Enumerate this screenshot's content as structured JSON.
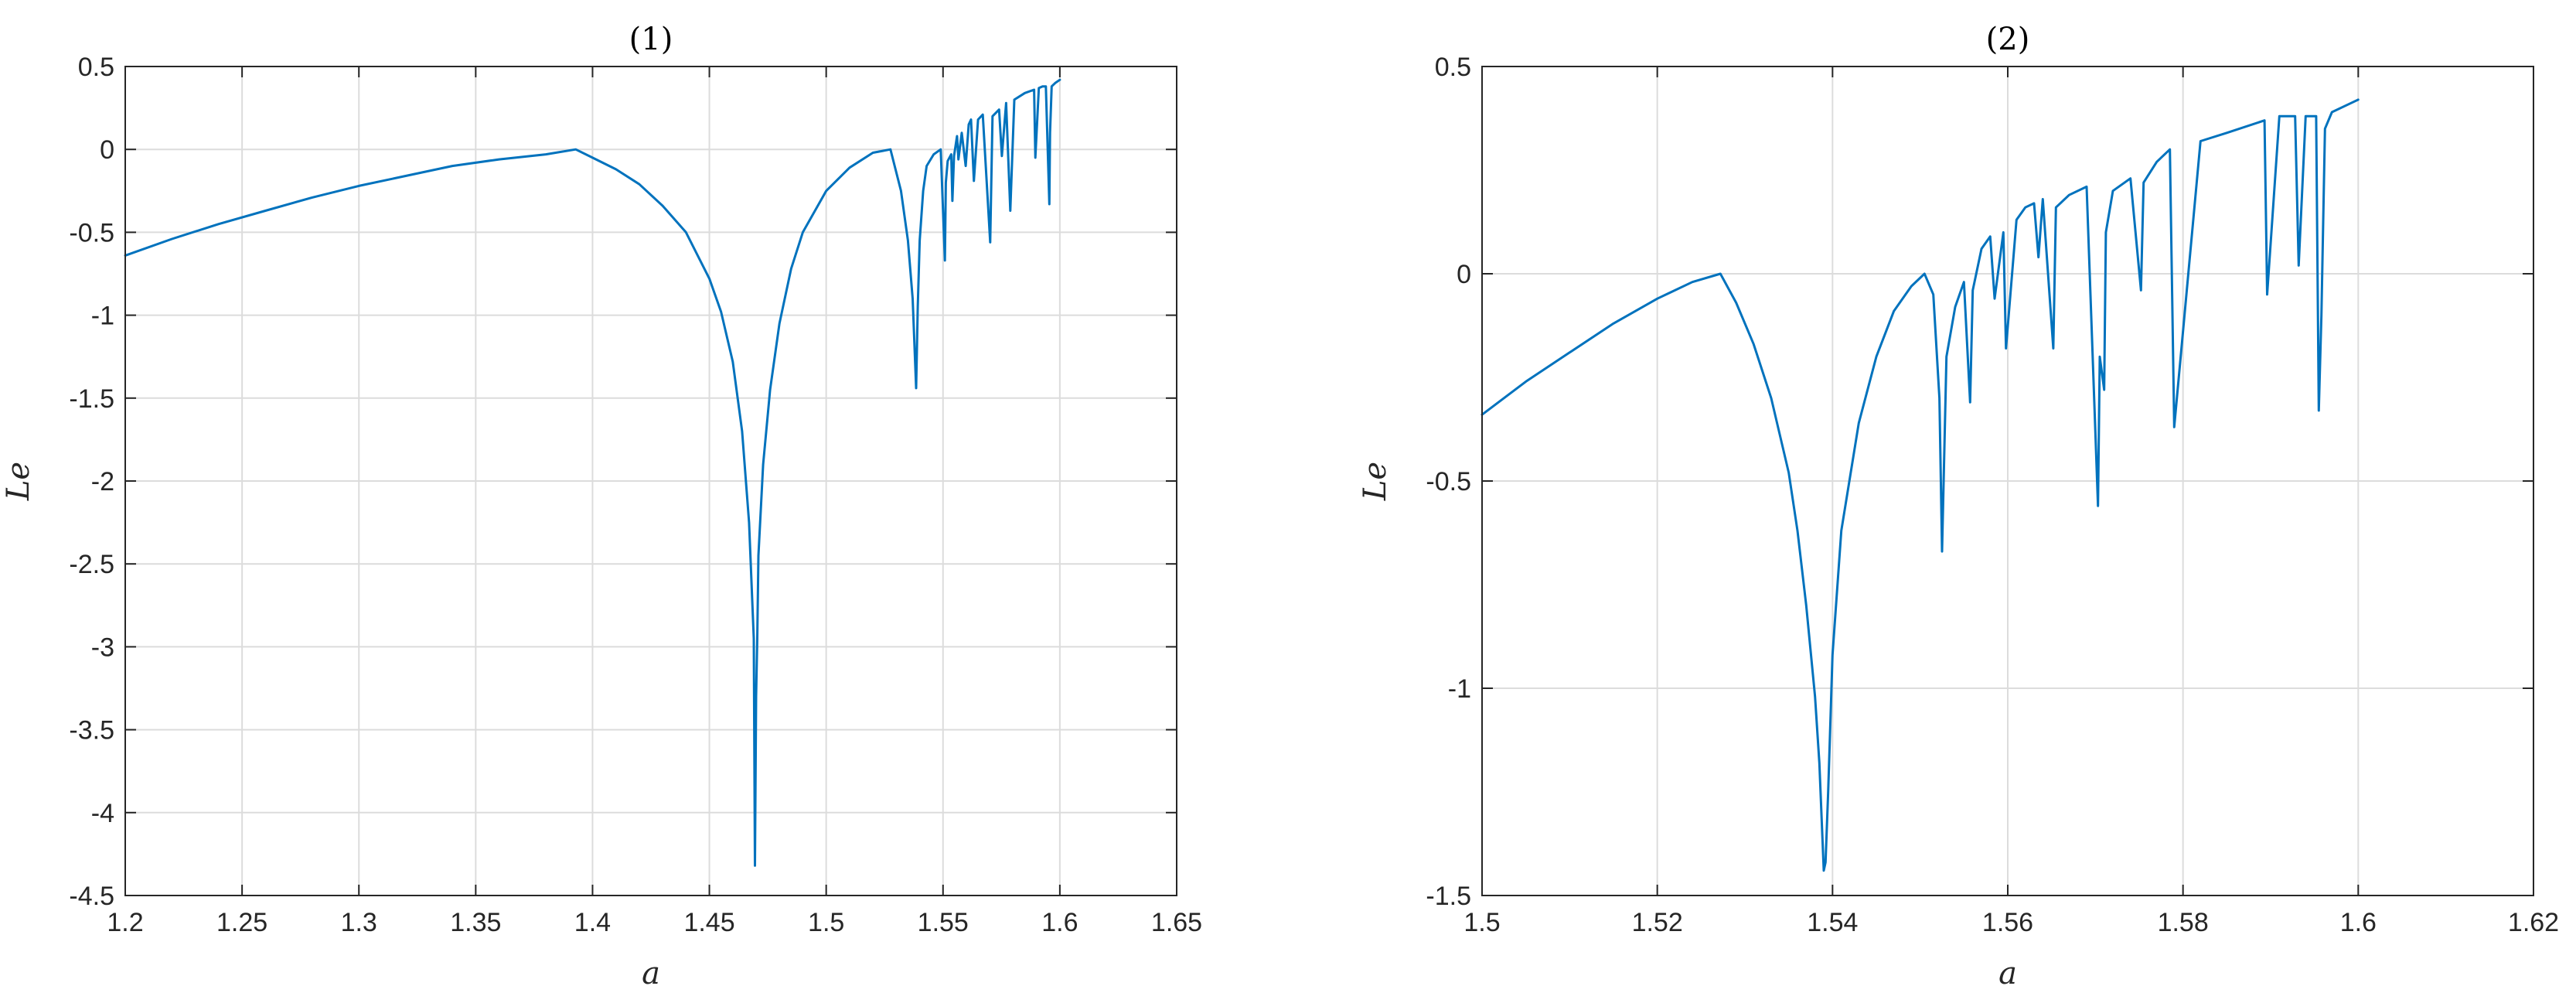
{
  "chart_data": [
    {
      "type": "line",
      "title": "(1)",
      "xlabel": "a",
      "ylabel": "Le",
      "xlim": [
        1.2,
        1.65
      ],
      "ylim": [
        -4.5,
        0.5
      ],
      "xticks": [
        1.2,
        1.25,
        1.3,
        1.35,
        1.4,
        1.45,
        1.5,
        1.55,
        1.6,
        1.65
      ],
      "xtick_labels": [
        "1.2",
        "1.25",
        "1.3",
        "1.35",
        "1.4",
        "1.45",
        "1.5",
        "1.55",
        "1.6",
        "1.65"
      ],
      "yticks": [
        0.5,
        0,
        -0.5,
        -1,
        -1.5,
        -2,
        -2.5,
        -3,
        -3.5,
        -4,
        -4.5
      ],
      "ytick_labels": [
        "0.5",
        "0",
        "-0.5",
        "-1",
        "-1.5",
        "-2",
        "-2.5",
        "-3",
        "-3.5",
        "-4",
        "-4.5"
      ],
      "grid": true,
      "color": "#0072BD",
      "series": [
        {
          "x": [
            1.2,
            1.22,
            1.24,
            1.26,
            1.28,
            1.3,
            1.32,
            1.34,
            1.36,
            1.38,
            1.3928,
            1.4,
            1.41,
            1.42,
            1.43,
            1.44,
            1.45,
            1.455,
            1.46,
            1.464,
            1.467,
            1.469,
            1.4695,
            1.47,
            1.4705,
            1.471,
            1.473,
            1.476,
            1.48,
            1.485,
            1.49,
            1.5,
            1.51,
            1.52,
            1.5275,
            1.532,
            1.535,
            1.537,
            1.5385,
            1.5392,
            1.54,
            1.5415,
            1.543,
            1.546,
            1.549,
            1.5508,
            1.5512,
            1.552,
            1.5535,
            1.554,
            1.5547,
            1.556,
            1.5566,
            1.558,
            1.5597,
            1.561,
            1.562,
            1.5632,
            1.565,
            1.567,
            1.5702,
            1.5712,
            1.574,
            1.5752,
            1.577,
            1.5788,
            1.5805,
            1.585,
            1.589,
            1.5895,
            1.591,
            1.5926,
            1.594,
            1.5955,
            1.5958,
            1.5965,
            1.598,
            1.6
          ],
          "y": [
            -0.64,
            -0.54,
            -0.45,
            -0.37,
            -0.29,
            -0.22,
            -0.16,
            -0.1,
            -0.06,
            -0.03,
            0.0,
            -0.05,
            -0.12,
            -0.21,
            -0.34,
            -0.5,
            -0.78,
            -0.98,
            -1.28,
            -1.7,
            -2.25,
            -2.95,
            -4.32,
            -3.3,
            -2.95,
            -2.45,
            -1.9,
            -1.45,
            -1.05,
            -0.72,
            -0.5,
            -0.25,
            -0.11,
            -0.02,
            0.0,
            -0.25,
            -0.55,
            -0.9,
            -1.44,
            -0.95,
            -0.55,
            -0.25,
            -0.1,
            -0.03,
            0.0,
            -0.67,
            -0.2,
            -0.07,
            -0.03,
            -0.31,
            -0.04,
            0.08,
            -0.06,
            0.1,
            -0.1,
            0.15,
            0.18,
            -0.19,
            0.18,
            0.21,
            -0.56,
            0.2,
            0.24,
            -0.04,
            0.28,
            -0.37,
            0.3,
            0.34,
            0.36,
            -0.05,
            0.37,
            0.38,
            0.38,
            -0.33,
            0.1,
            0.38,
            0.4,
            0.42
          ]
        }
      ]
    },
    {
      "type": "line",
      "title": "(2)",
      "xlabel": "a",
      "ylabel": "Le",
      "xlim": [
        1.5,
        1.62
      ],
      "ylim": [
        -1.5,
        0.5
      ],
      "xticks": [
        1.5,
        1.52,
        1.54,
        1.56,
        1.58,
        1.6,
        1.62
      ],
      "xtick_labels": [
        "1.5",
        "1.52",
        "1.54",
        "1.56",
        "1.58",
        "1.6",
        "1.62"
      ],
      "yticks": [
        0.5,
        0,
        -0.5,
        -1,
        -1.5
      ],
      "ytick_labels": [
        "0.5",
        "0",
        "-0.5",
        "-1",
        "-1.5"
      ],
      "grid": true,
      "color": "#0072BD",
      "series": [
        {
          "x": [
            1.5,
            1.505,
            1.51,
            1.515,
            1.52,
            1.524,
            1.5272,
            1.529,
            1.531,
            1.533,
            1.535,
            1.536,
            1.537,
            1.538,
            1.5385,
            1.539,
            1.5392,
            1.5395,
            1.54,
            1.541,
            1.543,
            1.545,
            1.547,
            1.549,
            1.5505,
            1.5515,
            1.5522,
            1.5525,
            1.553,
            1.554,
            1.555,
            1.5557,
            1.556,
            1.557,
            1.558,
            1.5585,
            1.5595,
            1.5598,
            1.561,
            1.562,
            1.563,
            1.5635,
            1.564,
            1.5652,
            1.5655,
            1.567,
            1.569,
            1.5703,
            1.5705,
            1.571,
            1.5712,
            1.572,
            1.574,
            1.5752,
            1.5755,
            1.577,
            1.5785,
            1.579,
            1.582,
            1.585,
            1.5893,
            1.5896,
            1.591,
            1.5928,
            1.5932,
            1.594,
            1.5952,
            1.5955,
            1.5958,
            1.5962,
            1.597,
            1.6
          ],
          "y": [
            -0.34,
            -0.26,
            -0.19,
            -0.12,
            -0.06,
            -0.02,
            0.0,
            -0.07,
            -0.17,
            -0.3,
            -0.48,
            -0.62,
            -0.8,
            -1.02,
            -1.18,
            -1.44,
            -1.42,
            -1.25,
            -0.92,
            -0.62,
            -0.36,
            -0.2,
            -0.09,
            -0.03,
            0.0,
            -0.05,
            -0.3,
            -0.67,
            -0.2,
            -0.08,
            -0.02,
            -0.31,
            -0.04,
            0.06,
            0.09,
            -0.06,
            0.1,
            -0.18,
            0.13,
            0.16,
            0.17,
            0.04,
            0.18,
            -0.18,
            0.16,
            0.19,
            0.21,
            -0.56,
            -0.2,
            -0.28,
            0.1,
            0.2,
            0.23,
            -0.04,
            0.22,
            0.27,
            0.3,
            -0.37,
            0.32,
            0.34,
            0.37,
            -0.05,
            0.38,
            0.38,
            0.02,
            0.38,
            0.38,
            -0.33,
            -0.1,
            0.35,
            0.39,
            0.42
          ]
        }
      ]
    }
  ]
}
